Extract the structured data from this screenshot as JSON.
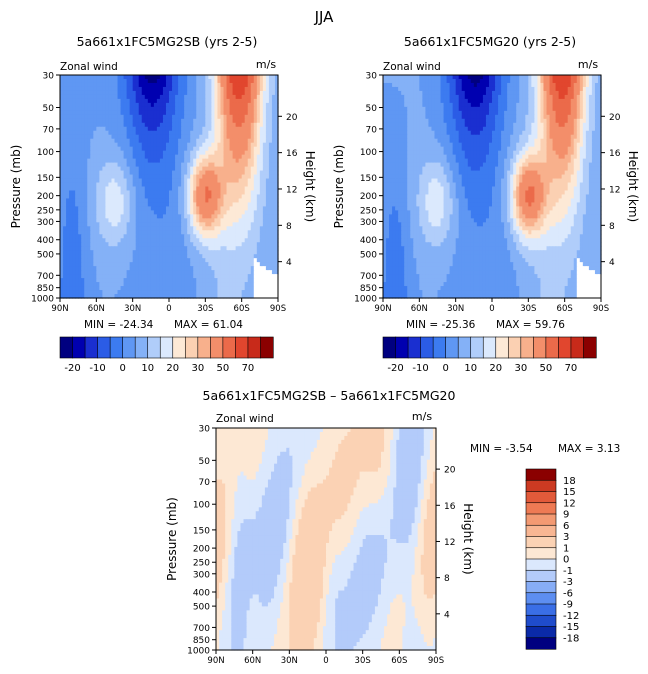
{
  "figure_title": "JJA",
  "colors": {
    "main_scale": [
      "#000080",
      "#0000b0",
      "#1a2fd0",
      "#2b5ce6",
      "#3c7bf0",
      "#5f97f3",
      "#84b1f7",
      "#b0cdfa",
      "#dbe9fd",
      "#fde9d6",
      "#fbd0b2",
      "#f8b08c",
      "#f38e6a",
      "#eb6a4a",
      "#e1462e",
      "#c82a1a",
      "#8b0000"
    ],
    "diff_scale": [
      "#000080",
      "#0a2aa8",
      "#1f4ccc",
      "#3a6ee6",
      "#5d8ef1",
      "#87adf6",
      "#b3cbfa",
      "#dbe8fd",
      "#fde8d4",
      "#fbd2b4",
      "#f8b693",
      "#f39a73",
      "#ee7a54",
      "#e25a3a",
      "#cc3a22",
      "#8b0000"
    ]
  },
  "chart_data": [
    {
      "type": "heatmap",
      "name": "left-control",
      "title": "5a661x1FC5MG2SB (yrs 2-5)",
      "left_label": "Zonal wind",
      "units": "m/s",
      "xlabel": "",
      "ylabel": "Pressure (mb)",
      "ylabel_right": "Height (km)",
      "x_ticks": [
        "90N",
        "60N",
        "30N",
        "0",
        "30S",
        "60S",
        "90S"
      ],
      "y_ticks": [
        "30",
        "50",
        "70",
        "100",
        "150",
        "200",
        "250",
        "300",
        "400",
        "500",
        "700",
        "850",
        "1000"
      ],
      "height_ticks": [
        "20",
        "16",
        "12",
        "8",
        "4"
      ],
      "min_label": "MIN = -24.34",
      "max_label": "MAX =  61.04",
      "colorbar_labels": [
        "-20",
        "-10",
        "0",
        "10",
        "20",
        "30",
        "50",
        "70"
      ],
      "min": -24.34,
      "max": 61.04
    },
    {
      "type": "heatmap",
      "name": "right-control",
      "title": "5a661x1FC5MG20 (yrs 2-5)",
      "left_label": "Zonal wind",
      "units": "m/s",
      "xlabel": "",
      "ylabel": "Pressure (mb)",
      "ylabel_right": "Height (km)",
      "x_ticks": [
        "90N",
        "60N",
        "30N",
        "0",
        "30S",
        "60S",
        "90S"
      ],
      "y_ticks": [
        "30",
        "50",
        "70",
        "100",
        "150",
        "200",
        "250",
        "300",
        "400",
        "500",
        "700",
        "850",
        "1000"
      ],
      "height_ticks": [
        "20",
        "16",
        "12",
        "8",
        "4"
      ],
      "min_label": "MIN = -25.36",
      "max_label": "MAX =  59.76",
      "colorbar_labels": [
        "-20",
        "-10",
        "0",
        "10",
        "20",
        "30",
        "50",
        "70"
      ],
      "min": -25.36,
      "max": 59.76
    },
    {
      "type": "heatmap",
      "name": "difference",
      "title": "5a661x1FC5MG2SB – 5a661x1FC5MG20",
      "left_label": "Zonal wind",
      "units": "m/s",
      "xlabel": "",
      "ylabel": "Pressure (mb)",
      "ylabel_right": "Height (km)",
      "x_ticks": [
        "90N",
        "60N",
        "30N",
        "0",
        "30S",
        "60S",
        "90S"
      ],
      "y_ticks": [
        "30",
        "50",
        "70",
        "100",
        "150",
        "200",
        "250",
        "300",
        "400",
        "500",
        "700",
        "850",
        "1000"
      ],
      "height_ticks": [
        "20",
        "16",
        "12",
        "8",
        "4"
      ],
      "min_label": "MIN =   -3.54",
      "max_label": "MAX =    3.13",
      "colorbar_labels": [
        "18",
        "15",
        "12",
        "9",
        "6",
        "3",
        "1",
        "0",
        "-1",
        "-3",
        "-6",
        "-9",
        "-12",
        "-15",
        "-18"
      ],
      "min": -3.54,
      "max": 3.13
    }
  ]
}
